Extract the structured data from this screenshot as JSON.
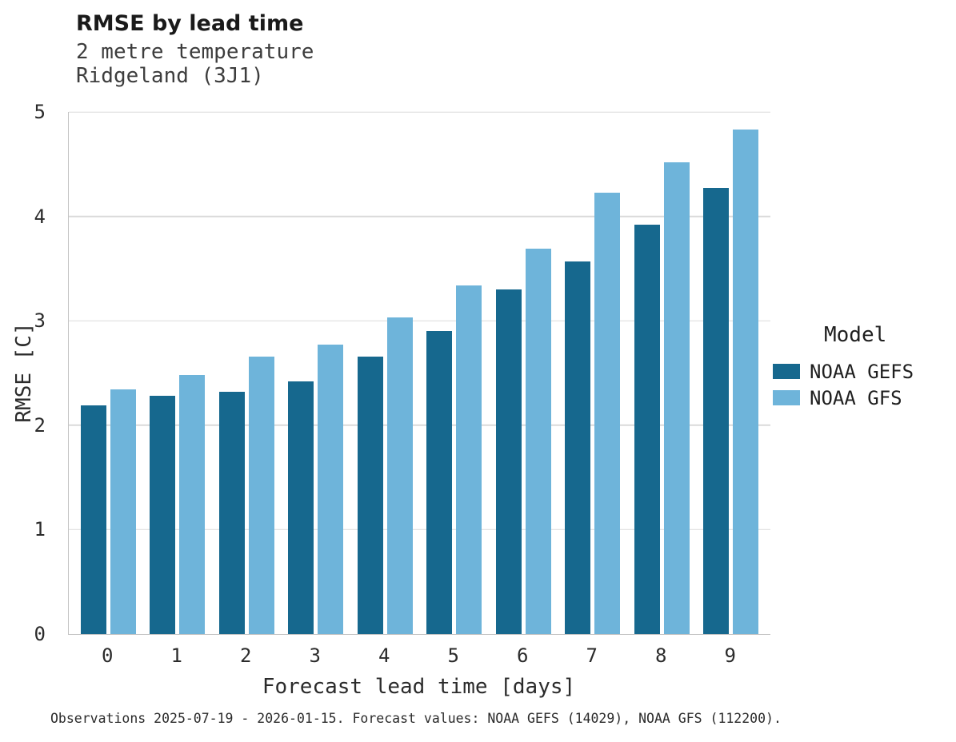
{
  "header": {
    "title": "RMSE by lead time",
    "subtitle_line1": "2 metre temperature",
    "subtitle_line2": "Ridgeland (3J1)"
  },
  "legend": {
    "title": "Model",
    "entries": [
      {
        "label": "NOAA GEFS",
        "color": "#16688e"
      },
      {
        "label": "NOAA GFS",
        "color": "#6eb4da"
      }
    ],
    "position": "right"
  },
  "footer": {
    "text": "Observations 2025-07-19 - 2026-01-15. Forecast values: NOAA GEFS (14029), NOAA GFS (112200)."
  },
  "chart_data": {
    "type": "bar",
    "title": "RMSE by lead time",
    "subtitle": "2 metre temperature / Ridgeland (3J1)",
    "xlabel": "Forecast lead time [days]",
    "ylabel": "RMSE [C]",
    "categories": [
      0,
      1,
      2,
      3,
      4,
      5,
      6,
      7,
      8,
      9
    ],
    "series": [
      {
        "name": "NOAA GEFS",
        "color": "#16688e",
        "values": [
          2.19,
          2.28,
          2.32,
          2.42,
          2.66,
          2.9,
          3.3,
          3.57,
          3.92,
          4.27
        ]
      },
      {
        "name": "NOAA GFS",
        "color": "#6eb4da",
        "values": [
          2.34,
          2.48,
          2.66,
          2.77,
          3.03,
          3.34,
          3.69,
          4.23,
          4.52,
          4.83
        ]
      }
    ],
    "ylim": [
      0,
      5
    ],
    "yticks": [
      0,
      1,
      2,
      3,
      4,
      5
    ],
    "grid": true,
    "legend_title": "Model",
    "legend_position": "right"
  }
}
